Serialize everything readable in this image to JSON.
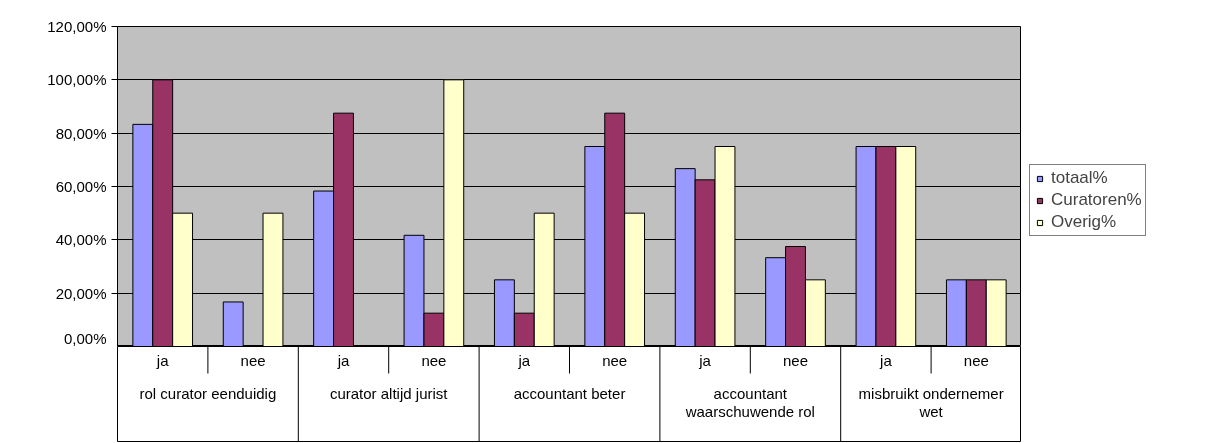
{
  "chart_data": {
    "type": "bar",
    "categories": [
      "ja",
      "nee",
      "ja",
      "nee",
      "ja",
      "nee",
      "ja",
      "nee",
      "ja",
      "nee"
    ],
    "annotations": [
      "rol curator eenduidig",
      "curator altijd jurist",
      "accountant beter",
      "accountant waarschuwende rol",
      "misbruikt ondernemer wet"
    ],
    "series": [
      {
        "name": "totaal%",
        "color": "#9999ff",
        "values": [
          83.3,
          16.7,
          58.3,
          41.7,
          25,
          75,
          66.7,
          33.3,
          75,
          25
        ]
      },
      {
        "name": "Curatoren%",
        "color": "#993366",
        "values": [
          100,
          0,
          87.5,
          12.5,
          12.5,
          87.5,
          62.5,
          37.5,
          75,
          25
        ]
      },
      {
        "name": "Overig%",
        "color": "#ffffcc",
        "values": [
          50,
          50,
          0,
          100,
          50,
          50,
          75,
          25,
          75,
          25
        ]
      }
    ],
    "ylim": [
      0,
      120
    ],
    "yticks": [
      {
        "value": 0,
        "label": "0,00%"
      },
      {
        "value": 20,
        "label": "20,00%"
      },
      {
        "value": 40,
        "label": "40,00%"
      },
      {
        "value": 60,
        "label": "60,00%"
      },
      {
        "value": 80,
        "label": "80,00%"
      },
      {
        "value": 100,
        "label": "100,00%"
      },
      {
        "value": 120,
        "label": "120,00%"
      }
    ],
    "grid": "y",
    "legend": "right"
  }
}
